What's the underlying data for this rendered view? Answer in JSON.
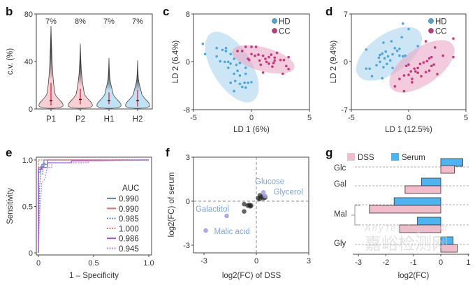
{
  "colors": {
    "hd": "#4aa7e0",
    "cc": "#c9367e",
    "hd_fill": "#bfe0f3",
    "cc_fill": "#f1c2d6",
    "dss": "#f2bccb",
    "serum": "#4cb4f0",
    "label": "#7fa6e6",
    "highlight": "#9d98ee"
  },
  "chart_data": [
    {
      "panel": "b",
      "type": "violin",
      "ylabel": "c.v. (%)",
      "ylim": [
        0,
        80
      ],
      "yticks": [
        "0",
        "40",
        "80"
      ],
      "categories": [
        "P1",
        "P2",
        "H1",
        "H2"
      ],
      "annotations": [
        "7%",
        "8%",
        "7%",
        "7%"
      ],
      "max": [
        70,
        55,
        43,
        41
      ],
      "median": [
        7,
        8,
        7,
        7
      ],
      "iqr_high": [
        22,
        17,
        14,
        16
      ],
      "iqr_low": [
        3,
        4,
        4,
        2
      ],
      "group": [
        "cc",
        "cc",
        "hd",
        "hd"
      ]
    },
    {
      "panel": "c",
      "type": "scatter",
      "xlabel": "LD 1 (6%)",
      "ylabel": "LD 2 (6.4%)",
      "xlim": [
        -5,
        5
      ],
      "ylim": [
        -8,
        8
      ],
      "xticks": [
        "-5",
        "0",
        "5"
      ],
      "yticks": [
        "8",
        "0",
        "-8"
      ],
      "legend": [
        "HD",
        "CC"
      ],
      "legend_position": "top-right",
      "series": [
        {
          "name": "HD",
          "points": [
            [
              -4.2,
              3
            ],
            [
              -4,
              1.3
            ],
            [
              -3,
              2.3
            ],
            [
              -3,
              0.9
            ],
            [
              -2.5,
              2
            ],
            [
              -2.2,
              2.3
            ],
            [
              -2.2,
              1.8
            ],
            [
              -2.3,
              0
            ],
            [
              -2,
              0
            ],
            [
              -1.8,
              1.3
            ],
            [
              -1.5,
              0.5
            ],
            [
              -1.3,
              -0.5
            ],
            [
              -1,
              -0.2
            ],
            [
              -1.5,
              -2
            ],
            [
              -1.2,
              -1.5
            ],
            [
              -1,
              -2.3
            ],
            [
              -0.5,
              -1
            ],
            [
              -0.5,
              -2
            ],
            [
              -1.8,
              -3.5
            ],
            [
              -1.4,
              -3.2
            ],
            [
              -1,
              -3.7
            ],
            [
              -0.8,
              -4.2
            ],
            [
              -0.6,
              -3.5
            ],
            [
              -0.3,
              -3.5
            ],
            [
              -1.5,
              -4.9
            ],
            [
              -0.5,
              -4.3
            ],
            [
              -2,
              -1
            ],
            [
              -1.8,
              -0.3
            ],
            [
              0,
              -3.4
            ],
            [
              -2.7,
              0.1
            ]
          ]
        },
        {
          "name": "CC",
          "points": [
            [
              -1.2,
              1.8
            ],
            [
              -0.8,
              1.8
            ],
            [
              -0.5,
              2.5
            ],
            [
              0,
              2.5
            ],
            [
              0.4,
              2.5
            ],
            [
              0,
              1.3
            ],
            [
              0.3,
              1
            ],
            [
              0.6,
              1.2
            ],
            [
              1,
              1
            ],
            [
              1.2,
              0.5
            ],
            [
              1.5,
              0.8
            ],
            [
              1.7,
              1.2
            ],
            [
              2,
              0.7
            ],
            [
              2,
              0.2
            ],
            [
              1.5,
              -0.3
            ],
            [
              1.8,
              -0.8
            ],
            [
              2.5,
              0.3
            ],
            [
              2.8,
              0.3
            ],
            [
              3,
              -0.7
            ],
            [
              3.2,
              -1.2
            ],
            [
              3.2,
              0.8
            ],
            [
              2.7,
              -2
            ],
            [
              0.8,
              -0.5
            ],
            [
              1,
              -1.8
            ],
            [
              -0.3,
              0.5
            ],
            [
              0.7,
              0.2
            ],
            [
              1.3,
              0
            ],
            [
              2.2,
              1.5
            ],
            [
              -0.2,
              0.3
            ],
            [
              1.9,
              -0.2
            ]
          ]
        }
      ]
    },
    {
      "panel": "d",
      "type": "scatter",
      "xlabel": "LD 1 (12.5%)",
      "ylabel": "LD 2 (9.4%)",
      "xlim": [
        -5,
        5
      ],
      "ylim": [
        -7,
        7
      ],
      "xticks": [
        "-5",
        "0",
        "5"
      ],
      "yticks": [
        "7",
        "0",
        "-7"
      ],
      "legend": [
        "HD",
        "CC"
      ],
      "legend_position": "top-right",
      "series": [
        {
          "name": "HD",
          "points": [
            [
              -3.7,
              -1
            ],
            [
              -3.4,
              -1
            ],
            [
              -3.2,
              -2.1
            ],
            [
              -3.7,
              1.8
            ],
            [
              -2.8,
              -0.5
            ],
            [
              -2.5,
              0
            ],
            [
              -2.5,
              1
            ],
            [
              -2.3,
              1.2
            ],
            [
              -2.3,
              -2.4
            ],
            [
              -2.1,
              0.5
            ],
            [
              -2,
              1.5
            ],
            [
              -1.9,
              -0.3
            ],
            [
              -1.8,
              0.8
            ],
            [
              -1.6,
              0.2
            ],
            [
              -1.4,
              1.1
            ],
            [
              -1.2,
              2
            ],
            [
              -1,
              1.6
            ],
            [
              -0.8,
              1.9
            ],
            [
              -0.8,
              0.9
            ],
            [
              -0.6,
              3.6
            ],
            [
              -0.5,
              0.8
            ],
            [
              0,
              4.8
            ],
            [
              -0.3,
              0.9
            ],
            [
              -1.5,
              3
            ],
            [
              -2.2,
              2.8
            ],
            [
              -2.6,
              0.6
            ],
            [
              -2.2,
              -0.8
            ],
            [
              -0.5,
              5.6
            ],
            [
              0.8,
              2.3
            ],
            [
              -1.4,
              -0.9
            ]
          ]
        },
        {
          "name": "CC",
          "points": [
            [
              -1.2,
              -3.6
            ],
            [
              -0.4,
              -2
            ],
            [
              -0.4,
              -4.3
            ],
            [
              -0.2,
              -0.6
            ],
            [
              0,
              -1.9
            ],
            [
              0,
              -0.4
            ],
            [
              0.2,
              -1.4
            ],
            [
              0.3,
              -2.5
            ],
            [
              0.5,
              -1
            ],
            [
              0.6,
              -1.4
            ],
            [
              0.8,
              -0.9
            ],
            [
              1,
              -0.3
            ],
            [
              1.1,
              -2.1
            ],
            [
              1.3,
              -0.1
            ],
            [
              1.5,
              -1.5
            ],
            [
              1.6,
              0.1
            ],
            [
              1.8,
              0.5
            ],
            [
              2,
              -0.6
            ],
            [
              2,
              0.7
            ],
            [
              2.2,
              -0.4
            ],
            [
              2.3,
              2.1
            ],
            [
              2.5,
              -1.8
            ],
            [
              3,
              0.9
            ],
            [
              3.9,
              3.4
            ],
            [
              3.9,
              0.7
            ],
            [
              1.5,
              3
            ],
            [
              0.3,
              -3
            ],
            [
              -0.8,
              -2.5
            ],
            [
              1.8,
              -1.3
            ],
            [
              0.8,
              -1.6
            ]
          ]
        }
      ]
    },
    {
      "panel": "e",
      "type": "line",
      "xlabel": "1 – Specificity",
      "ylabel": "Sensitivity",
      "xlim": [
        0,
        1
      ],
      "ylim": [
        0,
        1
      ],
      "xticks": [
        "0",
        "0.5",
        "1.0"
      ],
      "yticks": [
        "0",
        "0.5",
        "1.0"
      ],
      "legend_title": "AUC",
      "legend_position": "bottom-right",
      "series": [
        {
          "name": "0.990",
          "color": "#4a8fe0",
          "dash": false,
          "x": [
            0,
            0,
            0.02,
            0.02,
            0.05,
            0.05,
            1
          ],
          "y": [
            0,
            0.87,
            0.87,
            0.93,
            0.93,
            1,
            1
          ]
        },
        {
          "name": "0.990",
          "color": "#f07070",
          "dash": false,
          "x": [
            0,
            0,
            0.03,
            0.03,
            0.08,
            0.08,
            1
          ],
          "y": [
            0,
            0.92,
            0.92,
            0.95,
            0.95,
            1,
            1
          ]
        },
        {
          "name": "0.985",
          "color": "#4a8fe0",
          "dash": true,
          "x": [
            0,
            0.01,
            0.02,
            0.04,
            0.04,
            0.08,
            0.08,
            1
          ],
          "y": [
            0,
            0.7,
            0.85,
            0.85,
            0.96,
            0.96,
            1,
            1
          ]
        },
        {
          "name": "1.000",
          "color": "#f07070",
          "dash": true,
          "x": [
            0,
            0,
            1
          ],
          "y": [
            0,
            1,
            1
          ]
        },
        {
          "name": "0.986",
          "color": "#a050f0",
          "dash": false,
          "x": [
            0,
            0,
            0.03,
            0.03,
            0.08,
            0.08,
            0.3,
            0.3,
            1
          ],
          "y": [
            0,
            0.9,
            0.9,
            0.92,
            0.92,
            0.97,
            0.97,
            0.99,
            1
          ]
        },
        {
          "name": "0.945",
          "color": "#c080f0",
          "dash": true,
          "x": [
            0,
            0.01,
            0.03,
            0.06,
            0.08,
            0.12,
            0.12,
            0.45,
            0.45,
            1
          ],
          "y": [
            0,
            0.4,
            0.75,
            0.8,
            0.92,
            0.92,
            0.97,
            0.97,
            0.99,
            1
          ]
        }
      ]
    },
    {
      "panel": "f",
      "type": "scatter",
      "xlabel": "log2(FC) of DSS",
      "ylabel": "log2(FC) of serum",
      "xlim": [
        -3,
        3
      ],
      "ylim": [
        -3,
        3
      ],
      "xticks": [
        "-3",
        "0",
        "3"
      ],
      "yticks": [
        "3",
        "0",
        "-3"
      ],
      "points": [
        [
          0.1,
          0.2
        ],
        [
          0.2,
          0.4
        ],
        [
          0.3,
          0.3
        ],
        [
          0.4,
          0.2
        ],
        [
          0.5,
          0.25
        ],
        [
          0.2,
          0.15
        ],
        [
          -0.3,
          -0.3
        ],
        [
          -0.4,
          -0.25
        ],
        [
          -0.5,
          -0.3
        ],
        [
          -0.7,
          -0.2
        ],
        [
          -0.7,
          -0.7
        ],
        [
          -0.35,
          -0.35
        ]
      ],
      "labeled": [
        {
          "name": "Glucose",
          "x": 0.4,
          "y": 0.6
        },
        {
          "name": "Glycerol",
          "x": 0.5,
          "y": 0.35
        },
        {
          "name": "Galactitol",
          "x": -1.7,
          "y": -1.0
        },
        {
          "name": "Malic acid",
          "x": -2.9,
          "y": -2.0
        }
      ]
    },
    {
      "panel": "g",
      "type": "bar",
      "xlabel": "log2(FC)",
      "xlim": [
        -3,
        1
      ],
      "xticks": [
        "-3",
        "-2",
        "-1",
        "0",
        "1"
      ],
      "legend": [
        "DSS",
        "Serum"
      ],
      "legend_position": "top",
      "categories": [
        "Glc",
        "Gal",
        "Mal",
        "Mal",
        "Gly"
      ],
      "series": [
        {
          "name": "Serum",
          "values": [
            0.8,
            -0.7,
            -1.7,
            -0.85,
            0.45
          ]
        },
        {
          "name": "DSS",
          "values": [
            0.5,
            -1.3,
            -2.6,
            -1.5,
            0.6
          ]
        }
      ]
    }
  ],
  "panel_labels": [
    "b",
    "c",
    "d",
    "e",
    "f",
    "g"
  ],
  "watermark": {
    "cn": "嘉峪检测网",
    "en": "AnyTesting.com"
  }
}
